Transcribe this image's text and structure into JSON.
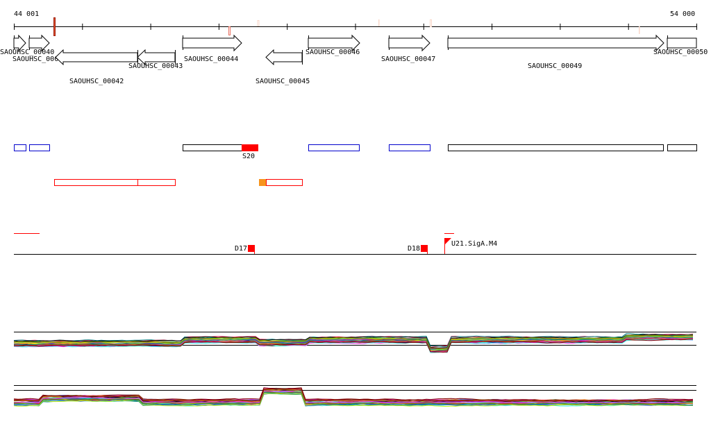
{
  "ruler": {
    "start_label": "44 001",
    "end_label": "54 000"
  },
  "genes": [
    {
      "name": "SAOUHSC_00040",
      "strand": "+"
    },
    {
      "name": "SAOUHSC_00041",
      "strand": "+"
    },
    {
      "name": "SAOUHSC_00042",
      "strand": "-"
    },
    {
      "name": "SAOUHSC_00043",
      "strand": "-"
    },
    {
      "name": "SAOUHSC_00044",
      "strand": "+"
    },
    {
      "name": "SAOUHSC_00045",
      "strand": "-"
    },
    {
      "name": "SAOUHSC_00046",
      "strand": "+"
    },
    {
      "name": "SAOUHSC_00047",
      "strand": "+"
    },
    {
      "name": "SAOUHSC_00049",
      "strand": "+"
    },
    {
      "name": "SAOUHSC_00050",
      "strand": "+"
    }
  ],
  "segments": {
    "s20_label": "S20"
  },
  "features": {
    "d17": "D17",
    "d18": "D18",
    "u21": "U21.SigA.M4"
  },
  "colors": {
    "red": "#ff0000",
    "blue": "#0000cc",
    "orange": "#f7941d",
    "pale": "#f9d7c9"
  }
}
